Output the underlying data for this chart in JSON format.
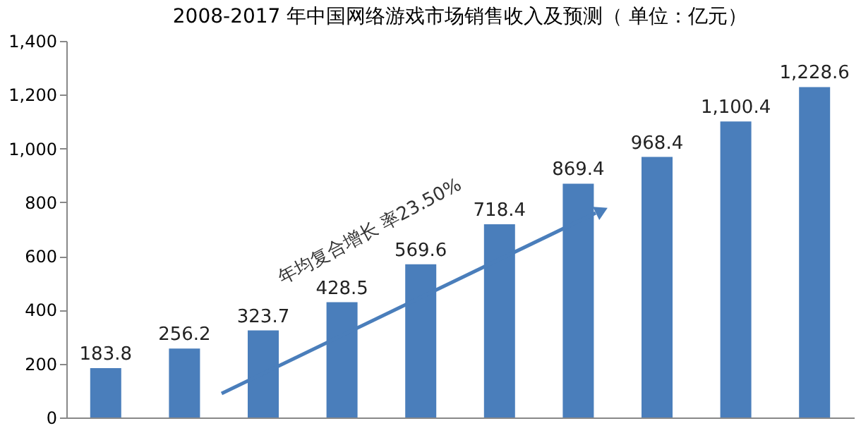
{
  "chart_data": {
    "type": "bar",
    "title": "2008-2017 年中国网络游戏市场销售收入及预测（ 单位：亿元）",
    "categories": [
      null,
      null,
      null,
      null,
      null,
      null,
      null,
      null,
      null,
      null
    ],
    "values": [
      183.8,
      256.2,
      323.7,
      428.5,
      569.6,
      718.4,
      869.4,
      968.4,
      1100.4,
      1228.6
    ],
    "color": "#4a7ebb",
    "data_labels": true,
    "value_labels": [
      "183.8",
      "256.2",
      "323.7",
      "428.5",
      "569.6",
      "718.4",
      "869.4",
      "968.4",
      "1,100.4",
      "1,228.6"
    ],
    "ylim": [
      0,
      1400
    ],
    "yticks": [
      {
        "value": 0,
        "label": "0"
      },
      {
        "value": 200,
        "label": "200"
      },
      {
        "value": 400,
        "label": "400"
      },
      {
        "value": 600,
        "label": "600"
      },
      {
        "value": 800,
        "label": "800"
      },
      {
        "value": 1000,
        "label": "1,000"
      },
      {
        "value": 1200,
        "label": "1,200"
      },
      {
        "value": 1400,
        "label": "1,400"
      }
    ],
    "tick_labels": "y",
    "grid": false,
    "annotations": [
      "年均复合增长 率23.50%"
    ]
  }
}
